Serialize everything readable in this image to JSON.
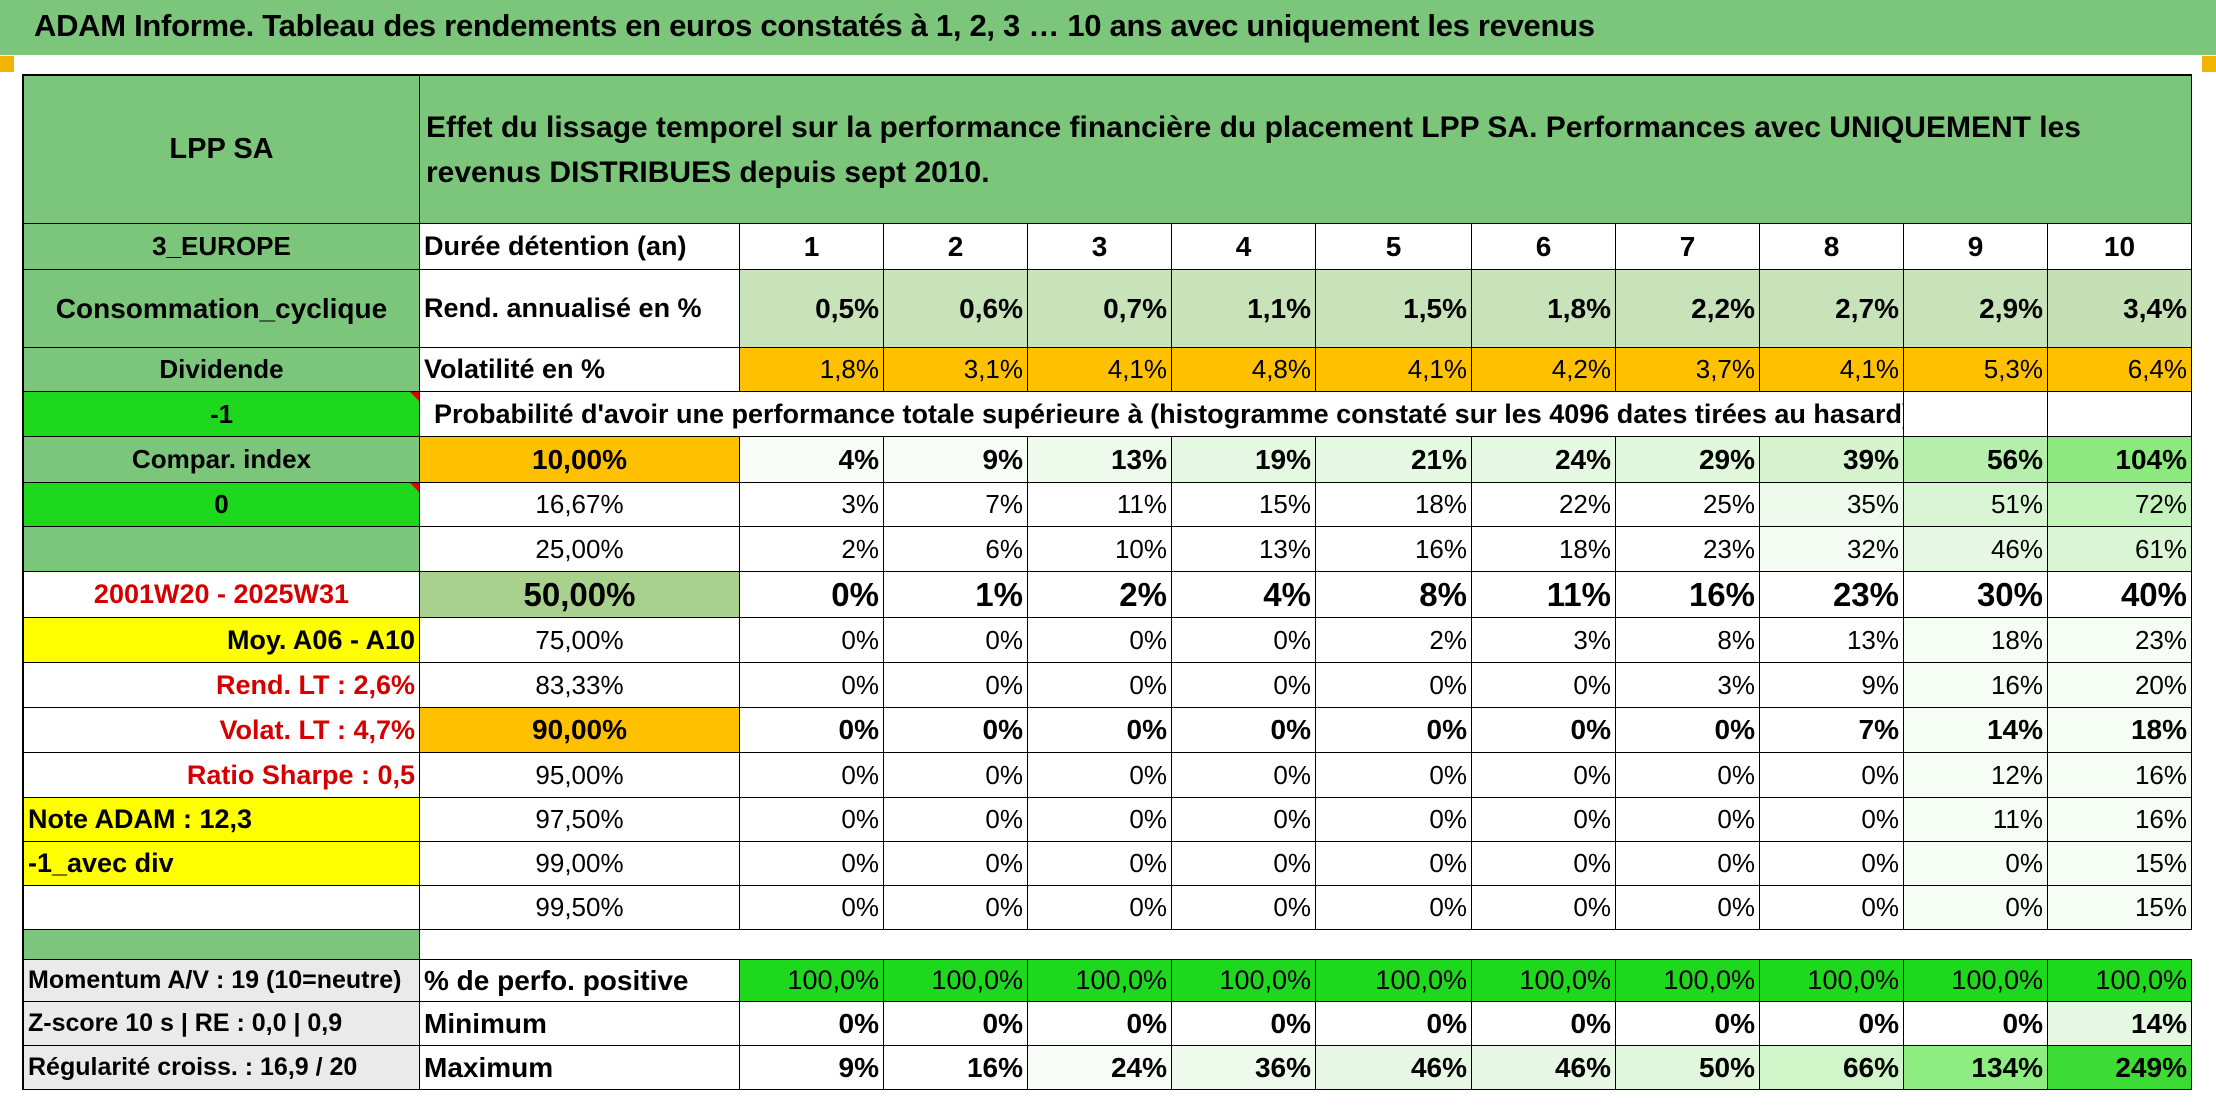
{
  "title": "ADAM Informe. Tableau des rendements en euros constatés à 1, 2, 3 … 10 ans avec uniquement les revenus",
  "header": {
    "name": "LPP SA",
    "description": "Effet du lissage temporel sur la performance financière du placement LPP SA. Performances avec UNIQUEMENT les revenus DISTRIBUES depuis sept 2010."
  },
  "left": {
    "region": "3_EUROPE",
    "sector": "Consommation_cyclique",
    "dividend": "Dividende",
    "val1": "-1",
    "compar": "Compar. index",
    "val0": "0",
    "period": "2001W20 - 2025W31",
    "moy": "Moy. A06 - A10",
    "rend_lt": "Rend. LT :   2,6%",
    "volat_lt": "Volat. LT :   4,7%",
    "sharpe": "Ratio Sharpe :    0,5",
    "note": "Note ADAM : 12,3",
    "avec_div": "-1_avec div"
  },
  "rows": {
    "duree_label": "Durée détention (an)",
    "years": [
      "1",
      "2",
      "3",
      "4",
      "5",
      "6",
      "7",
      "8",
      "9",
      "10"
    ],
    "rend_label": "Rend. annualisé en %",
    "rend": [
      "0,5%",
      "0,6%",
      "0,7%",
      "1,1%",
      "1,5%",
      "1,8%",
      "2,2%",
      "2,7%",
      "2,9%",
      "3,4%"
    ],
    "vol_label": "Volatilité en %",
    "vol": [
      "1,8%",
      "3,1%",
      "4,1%",
      "4,8%",
      "4,1%",
      "4,2%",
      "3,7%",
      "4,1%",
      "5,3%",
      "6,4%"
    ],
    "proba_label": "Probabilité d'avoir une performance totale supérieure à (histogramme constaté sur les 4096 dates tirées au hasard)"
  },
  "table": [
    {
      "p": "10,00%",
      "v": [
        "4%",
        "9%",
        "13%",
        "19%",
        "21%",
        "24%",
        "29%",
        "39%",
        "56%",
        "104%"
      ]
    },
    {
      "p": "16,67%",
      "v": [
        "3%",
        "7%",
        "11%",
        "15%",
        "18%",
        "22%",
        "25%",
        "35%",
        "51%",
        "72%"
      ]
    },
    {
      "p": "25,00%",
      "v": [
        "2%",
        "6%",
        "10%",
        "13%",
        "16%",
        "18%",
        "23%",
        "32%",
        "46%",
        "61%"
      ]
    },
    {
      "p": "50,00%",
      "v": [
        "0%",
        "1%",
        "2%",
        "4%",
        "8%",
        "11%",
        "16%",
        "23%",
        "30%",
        "40%"
      ]
    },
    {
      "p": "75,00%",
      "v": [
        "0%",
        "0%",
        "0%",
        "0%",
        "2%",
        "3%",
        "8%",
        "13%",
        "18%",
        "23%"
      ]
    },
    {
      "p": "83,33%",
      "v": [
        "0%",
        "0%",
        "0%",
        "0%",
        "0%",
        "0%",
        "3%",
        "9%",
        "16%",
        "20%"
      ]
    },
    {
      "p": "90,00%",
      "v": [
        "0%",
        "0%",
        "0%",
        "0%",
        "0%",
        "0%",
        "0%",
        "7%",
        "14%",
        "18%"
      ]
    },
    {
      "p": "95,00%",
      "v": [
        "0%",
        "0%",
        "0%",
        "0%",
        "0%",
        "0%",
        "0%",
        "0%",
        "12%",
        "16%"
      ]
    },
    {
      "p": "97,50%",
      "v": [
        "0%",
        "0%",
        "0%",
        "0%",
        "0%",
        "0%",
        "0%",
        "0%",
        "11%",
        "16%"
      ]
    },
    {
      "p": "99,00%",
      "v": [
        "0%",
        "0%",
        "0%",
        "0%",
        "0%",
        "0%",
        "0%",
        "0%",
        "0%",
        "15%"
      ]
    },
    {
      "p": "99,50%",
      "v": [
        "0%",
        "0%",
        "0%",
        "0%",
        "0%",
        "0%",
        "0%",
        "0%",
        "0%",
        "15%"
      ]
    }
  ],
  "bottom": {
    "momentum": "Momentum A/V : 19 (10=neutre)",
    "zscore": "Z-score 10 s | RE : 0,0 | 0,9",
    "regularite": "Régularité croiss. : 16,9 / 20",
    "pos_label": "% de perfo. positive",
    "pos": [
      "100,0%",
      "100,0%",
      "100,0%",
      "100,0%",
      "100,0%",
      "100,0%",
      "100,0%",
      "100,0%",
      "100,0%",
      "100,0%"
    ],
    "min_label": "Minimum",
    "min": [
      "0%",
      "0%",
      "0%",
      "0%",
      "0%",
      "0%",
      "0%",
      "0%",
      "0%",
      "14%"
    ],
    "max_label": "Maximum",
    "max": [
      "9%",
      "16%",
      "24%",
      "36%",
      "46%",
      "46%",
      "50%",
      "66%",
      "134%",
      "249%"
    ]
  }
}
